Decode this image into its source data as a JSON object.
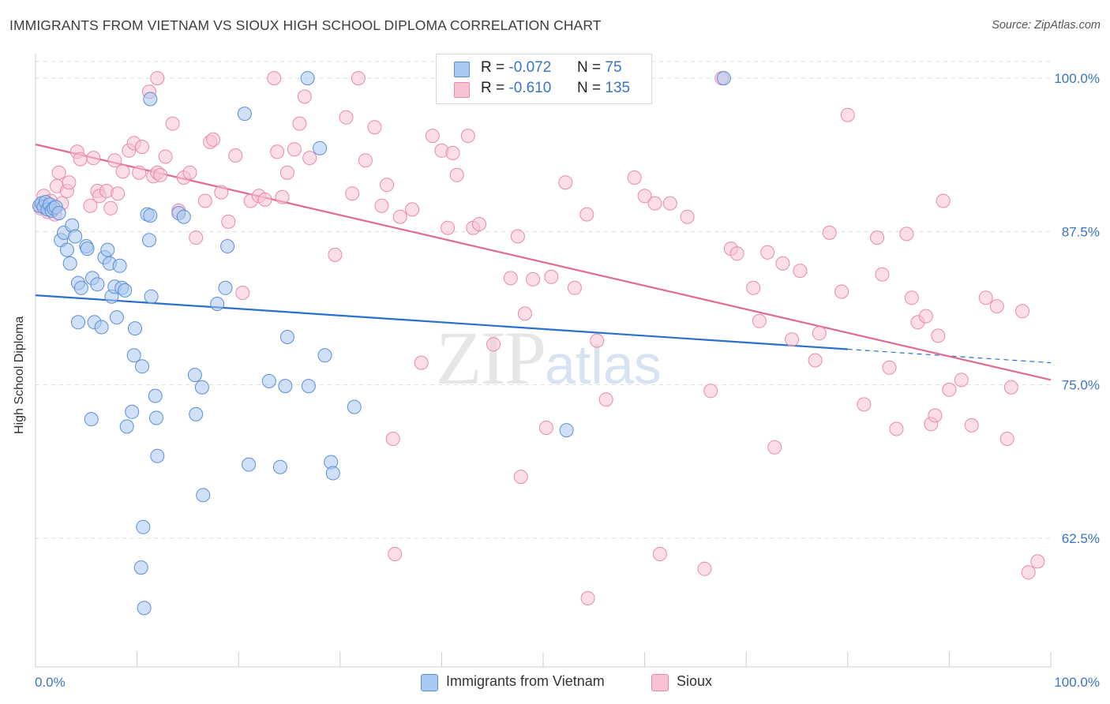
{
  "title": "IMMIGRANTS FROM VIETNAM VS SIOUX HIGH SCHOOL DIPLOMA CORRELATION CHART",
  "source": "Source: ZipAtlas.com",
  "watermark": {
    "zip": "ZIP",
    "atlas": "atlas"
  },
  "legend": {
    "rows": [
      {
        "r_label": "R =",
        "r_value": "-0.072",
        "n_label": "N =",
        "n_value": "75"
      },
      {
        "r_label": "R =",
        "r_value": "-0.610",
        "n_label": "N =",
        "n_value": "135"
      }
    ]
  },
  "bottom_legend": [
    "Immigrants from Vietnam",
    "Sioux"
  ],
  "colors": {
    "blue_fill": "#a9c8f0",
    "blue_stroke": "#5b8fd6",
    "blue_line": "#2a6fcf",
    "pink_fill": "#f7c3d3",
    "pink_stroke": "#e98aa8",
    "pink_line": "#e06a93",
    "tick_label": "#3a75c4",
    "grid": "#dddddd"
  },
  "chart_data": {
    "type": "scatter",
    "title": "IMMIGRANTS FROM VIETNAM VS SIOUX HIGH SCHOOL DIPLOMA CORRELATION CHART",
    "xlabel": "",
    "ylabel": "High School Diploma",
    "xlim": [
      0,
      100
    ],
    "ylim": [
      52,
      102
    ],
    "x_tick_labels": [
      "0.0%",
      "100.0%"
    ],
    "y_ticks": [
      62.5,
      75.0,
      87.5,
      100.0
    ],
    "y_tick_labels": [
      "62.5%",
      "75.0%",
      "87.5%",
      "100.0%"
    ],
    "grid": true,
    "legend_position": "top-center",
    "series": [
      {
        "name": "Immigrants from Vietnam",
        "R": -0.072,
        "N": 75,
        "trend": {
          "x0": 0,
          "y0": 82.3,
          "x1": 80,
          "y1": 77.9,
          "dash_to_x": 100,
          "dash_to_y": 76.8
        },
        "points": [
          [
            0.4,
            89.6
          ],
          [
            0.6,
            89.8
          ],
          [
            0.8,
            89.5
          ],
          [
            1.0,
            89.9
          ],
          [
            1.2,
            89.3
          ],
          [
            1.4,
            89.7
          ],
          [
            1.6,
            89.2
          ],
          [
            1.8,
            89.4
          ],
          [
            2.0,
            89.5
          ],
          [
            2.3,
            89.0
          ],
          [
            2.5,
            86.8
          ],
          [
            2.8,
            87.4
          ],
          [
            3.1,
            86.0
          ],
          [
            3.4,
            84.9
          ],
          [
            3.6,
            88.0
          ],
          [
            3.9,
            87.1
          ],
          [
            4.2,
            83.3
          ],
          [
            4.5,
            82.9
          ],
          [
            4.2,
            80.1
          ],
          [
            5.0,
            86.3
          ],
          [
            5.1,
            86.1
          ],
          [
            5.6,
            83.7
          ],
          [
            5.8,
            80.1
          ],
          [
            6.1,
            83.2
          ],
          [
            6.5,
            79.7
          ],
          [
            6.8,
            85.4
          ],
          [
            7.1,
            86.0
          ],
          [
            7.3,
            84.9
          ],
          [
            7.5,
            82.2
          ],
          [
            7.8,
            83.0
          ],
          [
            8.0,
            80.5
          ],
          [
            8.3,
            84.7
          ],
          [
            8.5,
            82.9
          ],
          [
            8.8,
            82.7
          ],
          [
            5.5,
            72.2
          ],
          [
            9.0,
            71.6
          ],
          [
            9.5,
            72.8
          ],
          [
            9.7,
            77.4
          ],
          [
            9.8,
            79.6
          ],
          [
            10.5,
            76.5
          ],
          [
            11.4,
            82.2
          ],
          [
            11.0,
            88.9
          ],
          [
            11.3,
            88.8
          ],
          [
            11.2,
            86.8
          ],
          [
            11.8,
            74.1
          ],
          [
            11.9,
            72.3
          ],
          [
            12.0,
            69.2
          ],
          [
            14.1,
            89.0
          ],
          [
            14.6,
            88.7
          ],
          [
            15.7,
            75.8
          ],
          [
            15.8,
            72.6
          ],
          [
            16.4,
            74.8
          ],
          [
            16.5,
            66.0
          ],
          [
            17.9,
            81.6
          ],
          [
            18.7,
            82.9
          ],
          [
            18.9,
            86.3
          ],
          [
            20.6,
            97.1
          ],
          [
            11.3,
            98.3
          ],
          [
            21.0,
            68.5
          ],
          [
            23.0,
            75.3
          ],
          [
            24.1,
            68.3
          ],
          [
            24.6,
            74.9
          ],
          [
            24.8,
            78.9
          ],
          [
            26.9,
            74.9
          ],
          [
            26.8,
            100.0
          ],
          [
            28.0,
            94.3
          ],
          [
            28.5,
            77.4
          ],
          [
            29.1,
            68.7
          ],
          [
            29.3,
            67.8
          ],
          [
            31.4,
            73.2
          ],
          [
            52.3,
            71.3
          ],
          [
            67.8,
            100.0
          ],
          [
            10.6,
            63.4
          ],
          [
            10.4,
            60.1
          ],
          [
            10.7,
            56.8
          ]
        ]
      },
      {
        "name": "Sioux",
        "R": -0.61,
        "N": 135,
        "trend": {
          "x0": 0,
          "y0": 94.6,
          "x1": 100,
          "y1": 75.4
        },
        "points": [
          [
            0.5,
            89.4
          ],
          [
            0.8,
            90.4
          ],
          [
            1.2,
            89.1
          ],
          [
            1.5,
            90.0
          ],
          [
            1.9,
            88.9
          ],
          [
            2.1,
            91.2
          ],
          [
            2.3,
            92.3
          ],
          [
            2.6,
            89.8
          ],
          [
            3.1,
            90.8
          ],
          [
            3.3,
            91.5
          ],
          [
            4.1,
            94.0
          ],
          [
            4.4,
            93.4
          ],
          [
            5.4,
            89.6
          ],
          [
            5.7,
            93.5
          ],
          [
            6.1,
            90.8
          ],
          [
            6.3,
            90.4
          ],
          [
            7.0,
            90.8
          ],
          [
            7.4,
            89.4
          ],
          [
            7.8,
            93.3
          ],
          [
            8.1,
            90.6
          ],
          [
            8.6,
            92.4
          ],
          [
            9.2,
            94.1
          ],
          [
            9.7,
            94.7
          ],
          [
            10.2,
            92.3
          ],
          [
            10.5,
            94.4
          ],
          [
            11.2,
            98.9
          ],
          [
            11.6,
            92.0
          ],
          [
            12.0,
            92.3
          ],
          [
            12.3,
            92.1
          ],
          [
            12.8,
            93.6
          ],
          [
            13.5,
            96.3
          ],
          [
            14.1,
            89.2
          ],
          [
            14.6,
            91.9
          ],
          [
            15.2,
            92.3
          ],
          [
            15.8,
            87.0
          ],
          [
            16.7,
            90.0
          ],
          [
            17.2,
            94.8
          ],
          [
            17.5,
            95.0
          ],
          [
            18.3,
            90.7
          ],
          [
            19.0,
            88.3
          ],
          [
            19.7,
            93.7
          ],
          [
            20.4,
            82.5
          ],
          [
            21.2,
            90.0
          ],
          [
            22.0,
            90.4
          ],
          [
            22.6,
            90.1
          ],
          [
            23.5,
            100.0
          ],
          [
            23.8,
            94.0
          ],
          [
            24.3,
            90.3
          ],
          [
            24.8,
            92.3
          ],
          [
            25.5,
            94.2
          ],
          [
            26.0,
            96.3
          ],
          [
            26.5,
            98.5
          ],
          [
            27.0,
            93.5
          ],
          [
            29.5,
            85.6
          ],
          [
            30.6,
            96.8
          ],
          [
            31.2,
            90.6
          ],
          [
            31.8,
            100.0
          ],
          [
            32.5,
            93.3
          ],
          [
            33.4,
            96.0
          ],
          [
            34.1,
            89.6
          ],
          [
            34.6,
            91.3
          ],
          [
            35.2,
            70.6
          ],
          [
            35.9,
            88.7
          ],
          [
            37.1,
            89.3
          ],
          [
            38.0,
            76.8
          ],
          [
            39.1,
            95.3
          ],
          [
            40.0,
            94.1
          ],
          [
            40.6,
            87.8
          ],
          [
            41.1,
            93.9
          ],
          [
            41.5,
            92.1
          ],
          [
            42.6,
            95.3
          ],
          [
            43.1,
            87.8
          ],
          [
            43.7,
            88.1
          ],
          [
            45.1,
            78.3
          ],
          [
            46.8,
            83.7
          ],
          [
            47.5,
            87.1
          ],
          [
            47.8,
            67.5
          ],
          [
            48.2,
            80.8
          ],
          [
            49.0,
            83.6
          ],
          [
            50.3,
            71.5
          ],
          [
            50.8,
            83.8
          ],
          [
            52.2,
            91.5
          ],
          [
            53.1,
            82.9
          ],
          [
            54.3,
            88.9
          ],
          [
            55.3,
            78.6
          ],
          [
            56.2,
            73.8
          ],
          [
            59.0,
            91.9
          ],
          [
            60.0,
            90.4
          ],
          [
            61.0,
            89.8
          ],
          [
            62.5,
            89.8
          ],
          [
            64.2,
            88.7
          ],
          [
            66.5,
            74.5
          ],
          [
            67.6,
            100.0
          ],
          [
            68.5,
            86.1
          ],
          [
            69.1,
            85.7
          ],
          [
            70.7,
            82.9
          ],
          [
            71.3,
            80.2
          ],
          [
            72.1,
            85.8
          ],
          [
            72.8,
            69.9
          ],
          [
            73.6,
            84.9
          ],
          [
            74.5,
            78.7
          ],
          [
            75.3,
            84.3
          ],
          [
            76.8,
            77.0
          ],
          [
            77.2,
            79.2
          ],
          [
            78.2,
            87.4
          ],
          [
            79.4,
            82.6
          ],
          [
            80.0,
            97.0
          ],
          [
            81.6,
            73.4
          ],
          [
            82.9,
            87.0
          ],
          [
            83.4,
            84.0
          ],
          [
            84.1,
            76.4
          ],
          [
            84.8,
            71.4
          ],
          [
            85.8,
            87.3
          ],
          [
            86.3,
            82.1
          ],
          [
            86.9,
            80.1
          ],
          [
            87.7,
            80.6
          ],
          [
            88.2,
            71.8
          ],
          [
            88.6,
            72.5
          ],
          [
            88.9,
            79.0
          ],
          [
            89.4,
            90.0
          ],
          [
            90.0,
            74.6
          ],
          [
            91.2,
            75.4
          ],
          [
            92.2,
            71.7
          ],
          [
            93.6,
            82.1
          ],
          [
            94.7,
            81.4
          ],
          [
            95.7,
            70.6
          ],
          [
            96.1,
            74.8
          ],
          [
            97.2,
            81.0
          ],
          [
            97.8,
            59.7
          ],
          [
            98.7,
            60.6
          ],
          [
            35.4,
            61.2
          ],
          [
            54.4,
            57.6
          ],
          [
            61.5,
            61.2
          ],
          [
            65.9,
            60.0
          ],
          [
            12.0,
            100.0
          ]
        ]
      }
    ]
  }
}
